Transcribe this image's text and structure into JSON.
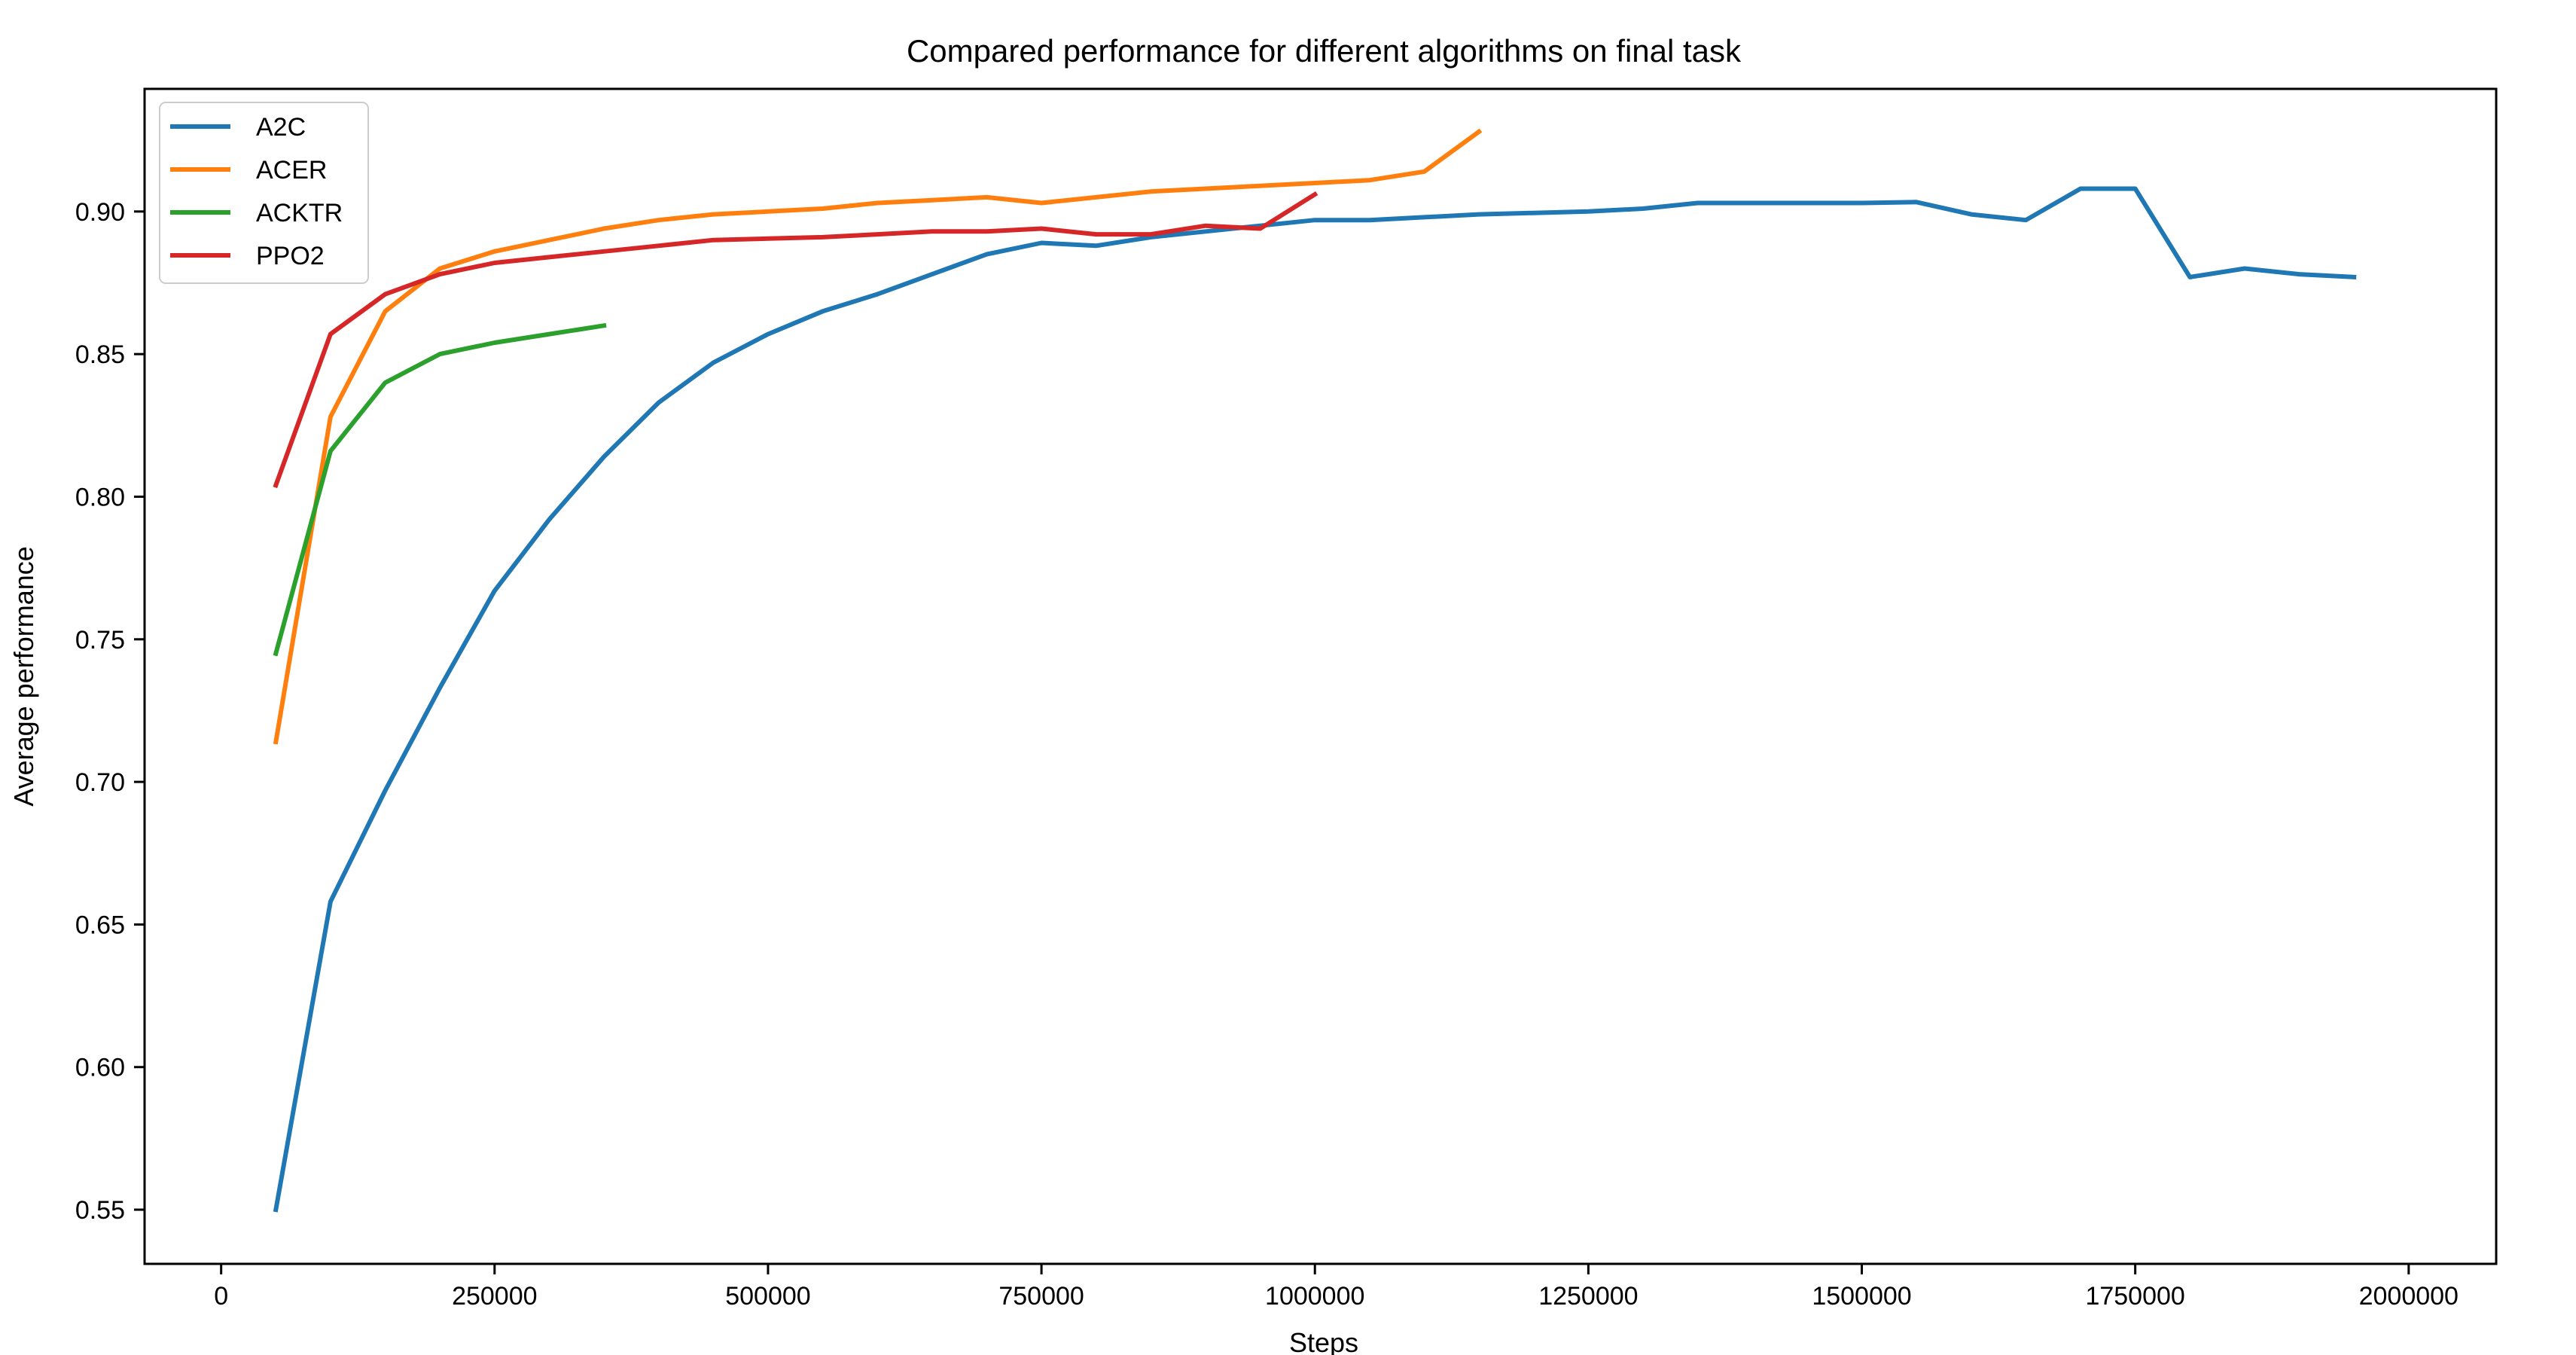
{
  "chart_data": {
    "type": "line",
    "title": "Compared performance for different algorithms on final task",
    "xlabel": "Steps",
    "ylabel": "Average performance",
    "xlim": [
      -70000,
      2080000
    ],
    "ylim": [
      0.531,
      0.943
    ],
    "xticks": [
      0,
      250000,
      500000,
      750000,
      1000000,
      1250000,
      1500000,
      1750000,
      2000000
    ],
    "yticks": [
      0.55,
      0.6,
      0.65,
      0.7,
      0.75,
      0.8,
      0.85,
      0.9
    ],
    "ytick_labels": [
      "0.55",
      "0.60",
      "0.65",
      "0.70",
      "0.75",
      "0.80",
      "0.85",
      "0.90"
    ],
    "grid": false,
    "legend_position": "top-left",
    "series": [
      {
        "name": "A2C",
        "color": "#1f77b4",
        "x": [
          50000,
          100000,
          150000,
          200000,
          250000,
          300000,
          350000,
          400000,
          450000,
          500000,
          550000,
          600000,
          650000,
          700000,
          750000,
          800000,
          850000,
          900000,
          950000,
          1000000,
          1050000,
          1100000,
          1150000,
          1200000,
          1250000,
          1300000,
          1350000,
          1400000,
          1450000,
          1500000,
          1550000,
          1600000,
          1650000,
          1700000,
          1750000,
          1800000,
          1850000,
          1900000,
          1950000
        ],
        "y": [
          0.55,
          0.658,
          0.697,
          0.733,
          0.767,
          0.792,
          0.814,
          0.833,
          0.847,
          0.857,
          0.865,
          0.871,
          0.878,
          0.885,
          0.889,
          0.888,
          0.891,
          0.893,
          0.895,
          0.897,
          0.897,
          0.898,
          0.899,
          0.8995,
          0.9,
          0.901,
          0.903,
          0.903,
          0.903,
          0.903,
          0.9033,
          0.899,
          0.897,
          0.908,
          0.908,
          0.877,
          0.88,
          0.878,
          0.877
        ]
      },
      {
        "name": "ACER",
        "color": "#ff7f0e",
        "x": [
          50000,
          100000,
          150000,
          200000,
          250000,
          300000,
          350000,
          400000,
          450000,
          500000,
          550000,
          600000,
          650000,
          700000,
          750000,
          800000,
          850000,
          900000,
          950000,
          1000000,
          1050000,
          1100000,
          1150000
        ],
        "y": [
          0.714,
          0.828,
          0.865,
          0.88,
          0.886,
          0.89,
          0.894,
          0.897,
          0.899,
          0.9,
          0.901,
          0.903,
          0.904,
          0.905,
          0.903,
          0.905,
          0.907,
          0.908,
          0.909,
          0.91,
          0.911,
          0.914,
          0.928
        ]
      },
      {
        "name": "ACKTR",
        "color": "#2ca02c",
        "x": [
          50000,
          100000,
          150000,
          200000,
          250000,
          300000,
          350000
        ],
        "y": [
          0.745,
          0.816,
          0.84,
          0.85,
          0.854,
          0.857,
          0.86
        ]
      },
      {
        "name": "PPO2",
        "color": "#d62728",
        "x": [
          50000,
          100000,
          150000,
          200000,
          250000,
          300000,
          350000,
          400000,
          450000,
          500000,
          550000,
          600000,
          650000,
          700000,
          750000,
          800000,
          850000,
          900000,
          950000,
          1000000
        ],
        "y": [
          0.804,
          0.857,
          0.871,
          0.878,
          0.882,
          0.884,
          0.886,
          0.888,
          0.89,
          0.8905,
          0.891,
          0.892,
          0.893,
          0.893,
          0.894,
          0.892,
          0.892,
          0.895,
          0.894,
          0.906
        ]
      }
    ]
  }
}
